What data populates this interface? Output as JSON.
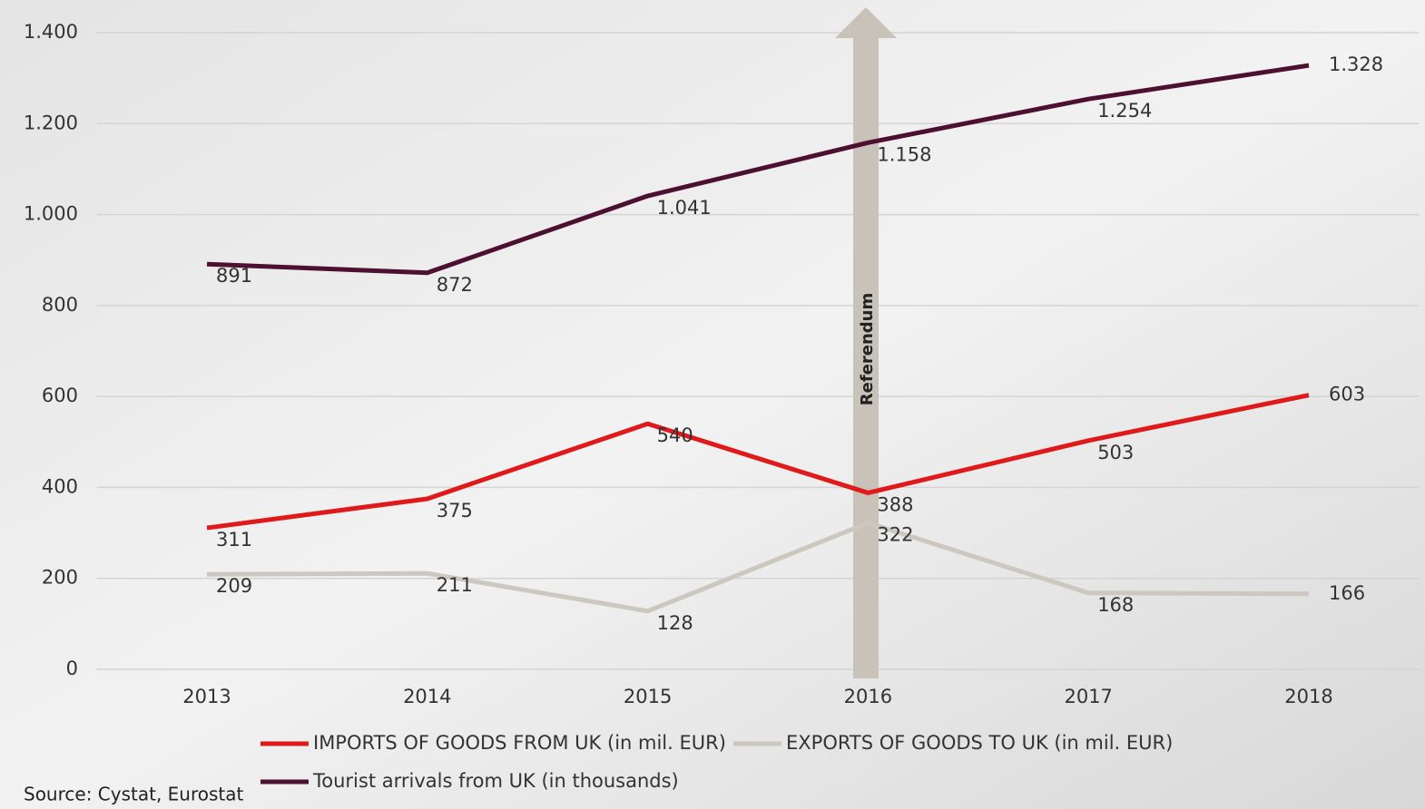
{
  "chart_data": {
    "type": "line",
    "categories": [
      "2013",
      "2014",
      "2015",
      "2016",
      "2017",
      "2018"
    ],
    "series": [
      {
        "name": "IMPORTS OF GOODS FROM UK (in mil. EUR)",
        "color": "#e0191b",
        "values": [
          311,
          375,
          540,
          388,
          503,
          603
        ]
      },
      {
        "name": "EXPORTS OF GOODS TO UK (in mil. EUR)",
        "color": "#cdc8bf",
        "values": [
          209,
          211,
          128,
          322,
          168,
          166
        ]
      },
      {
        "name": "Tourist arrivals from UK (in thousands)",
        "color": "#4d1030",
        "values": [
          891,
          872,
          1041,
          1158,
          1254,
          1328
        ],
        "value_labels": [
          "891",
          "872",
          "1.041",
          "1.158",
          "1.254",
          "1.328"
        ]
      }
    ],
    "ylim": [
      0,
      1400
    ],
    "yticks": [
      0,
      200,
      400,
      600,
      800,
      {
        "value": 1000,
        "label": "1.000"
      },
      {
        "value": 1200,
        "label": "1.200"
      },
      {
        "value": 1400,
        "label": "1.400"
      }
    ],
    "grid": true,
    "legend": "bottom",
    "annotation": "Referendum",
    "source": "Source: Cystat, Eurostat"
  }
}
